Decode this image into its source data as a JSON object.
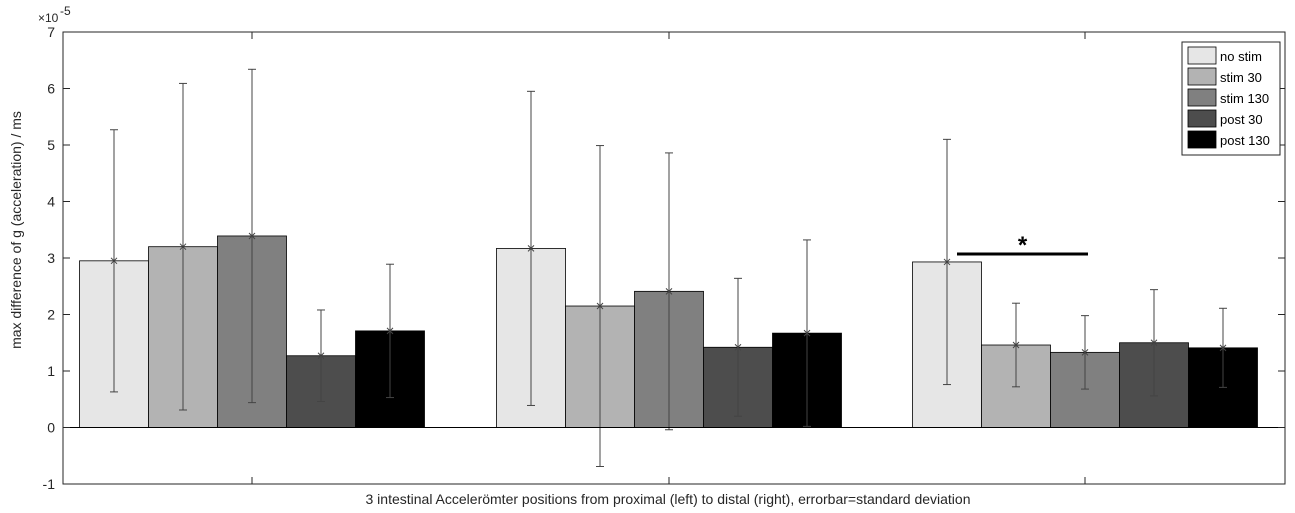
{
  "chart_data": {
    "type": "bar",
    "title": "",
    "xlabel": "3 intestinal Accelerömter positions from proximal (left) to distal (right), errorbar=standard deviation",
    "ylabel": "max difference of g (acceleration) / ms",
    "y_multiplier_label": "×10",
    "y_multiplier_exponent": "-5",
    "ylim": [
      -1,
      7
    ],
    "yticks": [
      -1,
      0,
      1,
      2,
      3,
      4,
      5,
      6,
      7
    ],
    "categories": [
      "",
      "",
      ""
    ],
    "series": [
      {
        "name": "no stim",
        "color": "#e6e6e6",
        "values": [
          2.95,
          3.17,
          2.93
        ],
        "std": [
          2.32,
          2.78,
          2.17
        ]
      },
      {
        "name": "stim 30",
        "color": "#b3b3b3",
        "values": [
          3.2,
          2.15,
          1.46
        ],
        "std": [
          2.89,
          2.84,
          0.74
        ]
      },
      {
        "name": "stim 130",
        "color": "#808080",
        "values": [
          3.39,
          2.41,
          1.33
        ],
        "std": [
          2.95,
          2.45,
          0.65
        ]
      },
      {
        "name": "post 30",
        "color": "#4d4d4d",
        "values": [
          1.27,
          1.42,
          1.5
        ],
        "std": [
          0.81,
          1.22,
          0.94
        ]
      },
      {
        "name": "post 130",
        "color": "#000000",
        "values": [
          1.71,
          1.67,
          1.41
        ],
        "std": [
          1.18,
          1.65,
          0.7
        ]
      }
    ],
    "significance": {
      "group": 3,
      "from_series": 0,
      "to_series": 2,
      "y": 3.07,
      "label": "*"
    },
    "legend_position": "top-right",
    "grid": false
  }
}
